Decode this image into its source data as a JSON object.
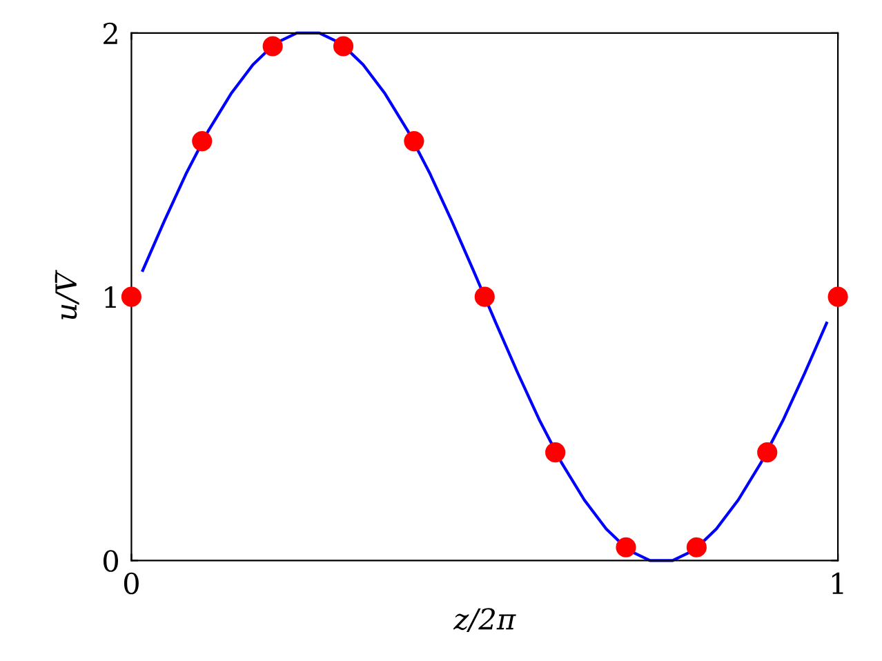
{
  "chart_data": {
    "type": "line",
    "xlabel": "z/2π",
    "ylabel": "u/V̄",
    "xlim": [
      0,
      1
    ],
    "ylim": [
      0,
      2
    ],
    "xticks": [
      0,
      1
    ],
    "yticks": [
      0,
      1,
      2
    ],
    "grid": false,
    "legend": false,
    "series": [
      {
        "color": "#0000ff",
        "marker": "none",
        "line_style": "solid",
        "x": [
          0.016,
          0.047,
          0.078,
          0.109,
          0.141,
          0.172,
          0.203,
          0.234,
          0.266,
          0.297,
          0.328,
          0.359,
          0.391,
          0.422,
          0.453,
          0.484,
          0.516,
          0.547,
          0.578,
          0.609,
          0.641,
          0.672,
          0.703,
          0.734,
          0.766,
          0.797,
          0.828,
          0.859,
          0.891,
          0.922,
          0.953,
          0.984
        ],
        "values": [
          1.1,
          1.29,
          1.47,
          1.63,
          1.77,
          1.88,
          1.96,
          2.0,
          2.0,
          1.96,
          1.88,
          1.77,
          1.63,
          1.47,
          1.29,
          1.1,
          0.9,
          0.71,
          0.53,
          0.37,
          0.23,
          0.12,
          0.04,
          0.0,
          0.0,
          0.04,
          0.12,
          0.23,
          0.37,
          0.53,
          0.71,
          0.9
        ]
      },
      {
        "type": "scatter",
        "color": "#ff0000",
        "marker": "circle",
        "x": [
          0,
          0.1,
          0.2,
          0.3,
          0.4,
          0.5,
          0.6,
          0.7,
          0.8,
          0.9,
          1
        ],
        "values": [
          1,
          1.59,
          1.95,
          1.95,
          1.59,
          1,
          0.41,
          0.05,
          0.05,
          0.41,
          1
        ]
      }
    ]
  }
}
